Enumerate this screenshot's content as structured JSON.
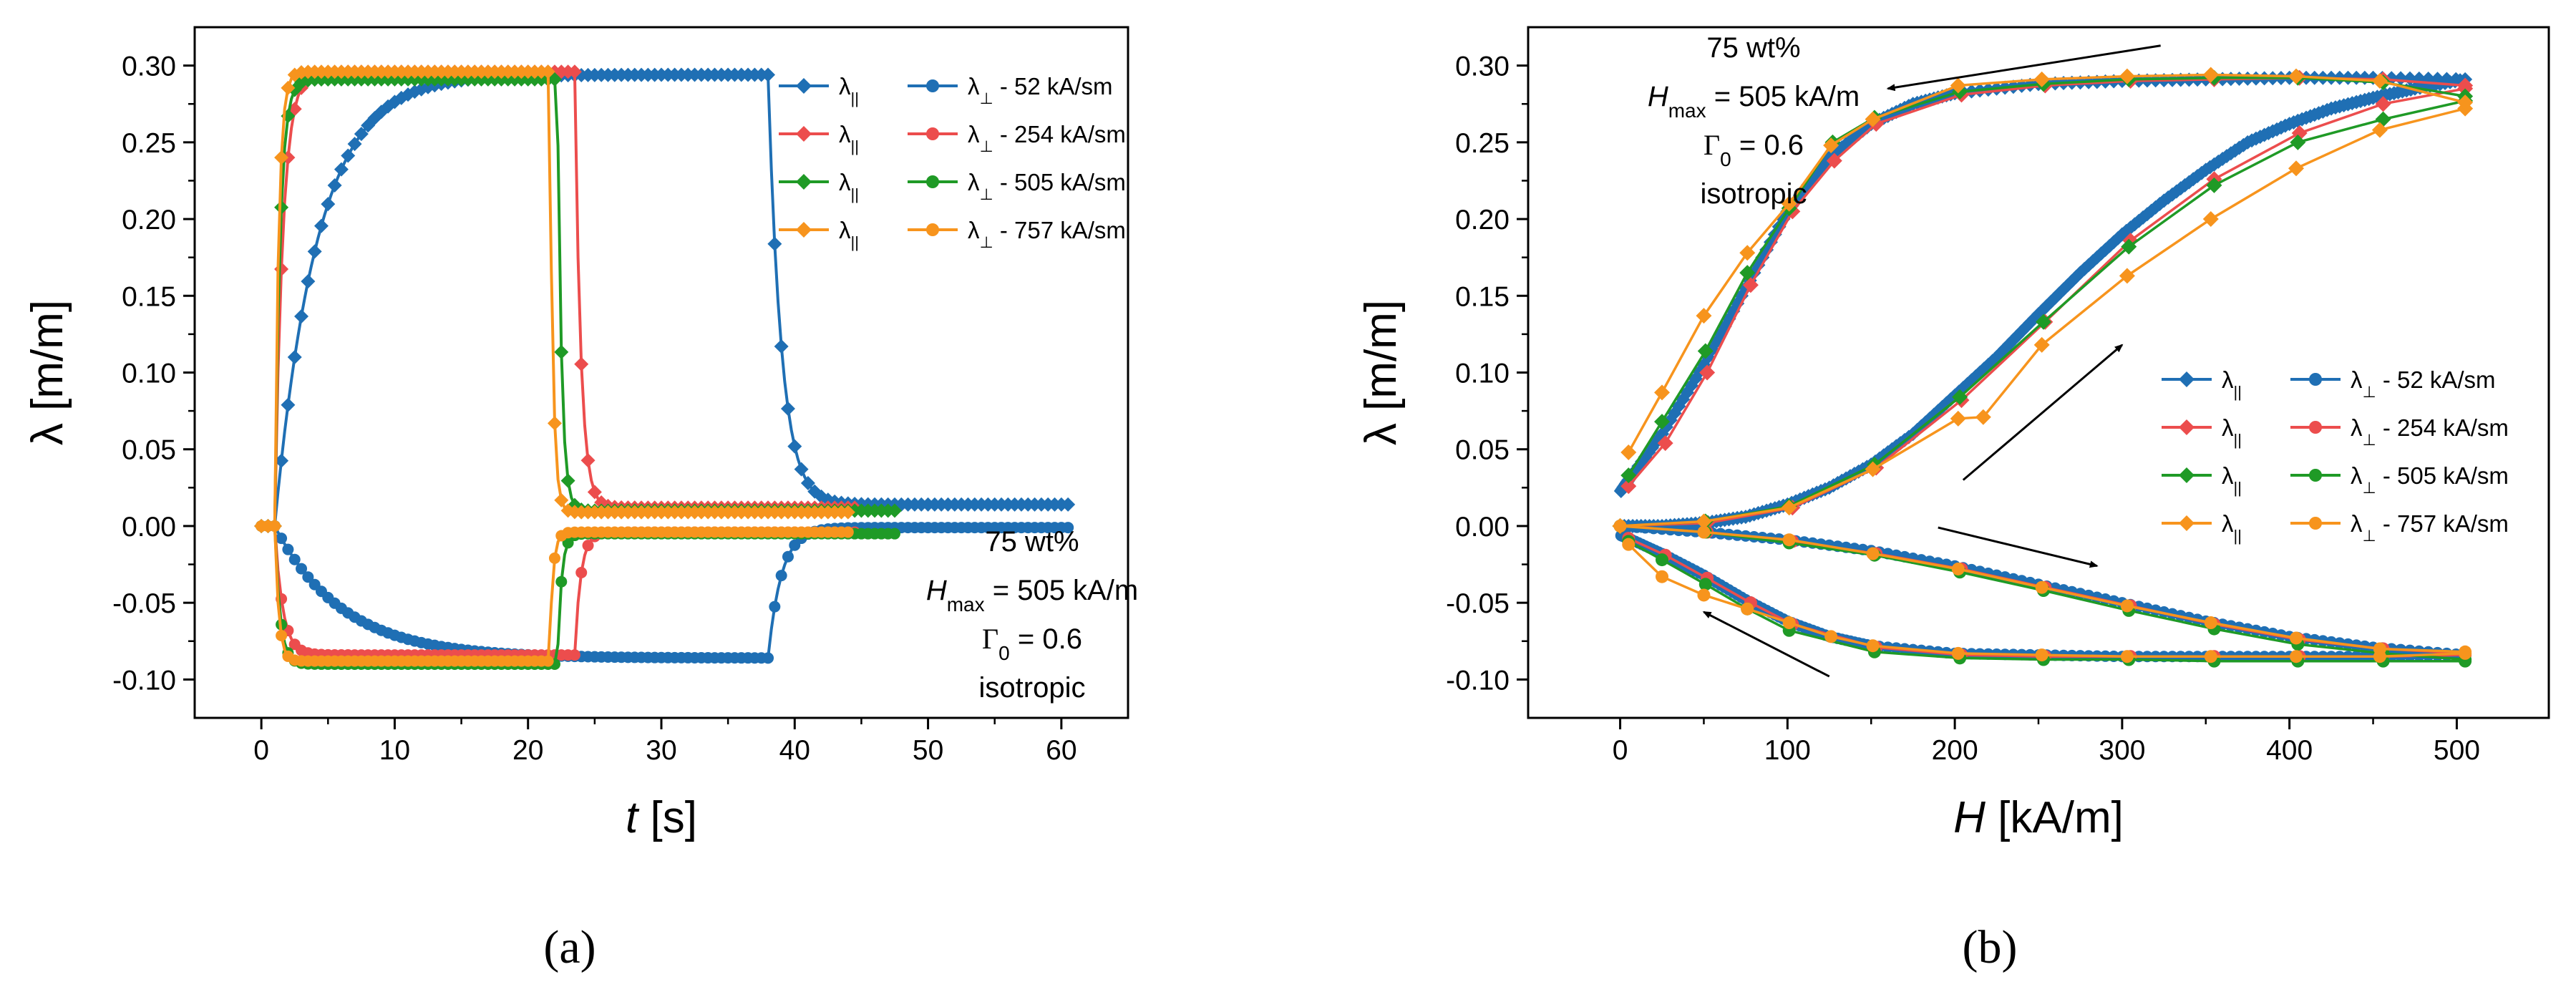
{
  "panel_labels": [
    "(a)",
    "(b)"
  ],
  "colors": {
    "52": "#1f6fb4",
    "254": "#ec4d4d",
    "505": "#1f9a26",
    "757": "#f7941d"
  },
  "legend": {
    "par_symbol": "λ",
    "par_sub": "||",
    "perp_symbol": "λ",
    "perp_sub": "⊥",
    "entries": [
      " -  52 kA/sm",
      " - 254 kA/sm",
      " - 505 kA/sm",
      " - 757 kA/sm"
    ]
  },
  "annotation": {
    "line1": "75 wt%",
    "hmax_sym": "H",
    "hmax_sub": "max",
    "hmax_val": " = 505 kA/m",
    "gamma": "Γ",
    "gamma_sub": "0",
    "gamma_val": " = 0.6",
    "line4": "isotropic"
  },
  "chart_data": [
    {
      "type": "line",
      "panel": "(a)",
      "xlabel_sym": "t",
      "xlabel_unit": " [s]",
      "ylabel": "λ [m/m]",
      "xlim": [
        -5,
        65
      ],
      "ylim": [
        -0.125,
        0.325
      ],
      "xticks": [
        0,
        10,
        20,
        30,
        40,
        50,
        60
      ],
      "yticks": [
        -0.1,
        -0.05,
        0.0,
        0.05,
        0.1,
        0.15,
        0.2,
        0.25,
        0.3
      ],
      "series": [
        {
          "name": "52 kA/sm",
          "field": "52",
          "t_on": 1.0,
          "t_off": 38.0,
          "tau_on": 3.2,
          "tau_off": 1.0,
          "par_max": 0.294,
          "perp_min": -0.086,
          "t_end": 60.5,
          "par_end": 0.014,
          "perp_end": -0.001
        },
        {
          "name": "254 kA/sm",
          "field": "254",
          "t_on": 1.0,
          "t_off": 23.5,
          "tau_on": 0.6,
          "tau_off": 0.45,
          "par_max": 0.296,
          "perp_min": -0.084,
          "t_end": 44.5,
          "par_end": 0.012,
          "perp_end": -0.004
        },
        {
          "name": "505 kA/sm",
          "field": "505",
          "t_on": 1.0,
          "t_off": 22.2,
          "tau_on": 0.4,
          "tau_off": 0.3,
          "par_max": 0.291,
          "perp_min": -0.09,
          "t_end": 47.5,
          "par_end": 0.01,
          "perp_end": -0.005
        },
        {
          "name": "757 kA/sm",
          "field": "757",
          "t_on": 1.0,
          "t_off": 21.6,
          "tau_on": 0.3,
          "tau_off": 0.25,
          "par_max": 0.296,
          "perp_min": -0.088,
          "t_end": 44.0,
          "par_end": 0.009,
          "perp_end": -0.004
        }
      ]
    },
    {
      "type": "line",
      "panel": "(b)",
      "xlabel_sym": "H",
      "xlabel_unit": " [kA/m]",
      "ylabel": "λ [m/m]",
      "xlim": [
        -55,
        555
      ],
      "ylim": [
        -0.125,
        0.325
      ],
      "xticks": [
        0,
        100,
        200,
        300,
        400,
        500
      ],
      "yticks": [
        -0.1,
        -0.05,
        0.0,
        0.05,
        0.1,
        0.15,
        0.2,
        0.25,
        0.3
      ],
      "series": [
        {
          "name": "52 kA/sm",
          "field": "52",
          "par_up": [
            [
              0,
              0
            ],
            [
              25,
              0.0
            ],
            [
              50,
              0.002
            ],
            [
              75,
              0.006
            ],
            [
              100,
              0.014
            ],
            [
              125,
              0.025
            ],
            [
              150,
              0.04
            ],
            [
              175,
              0.06
            ],
            [
              200,
              0.085
            ],
            [
              225,
              0.11
            ],
            [
              250,
              0.138
            ],
            [
              275,
              0.165
            ],
            [
              300,
              0.19
            ],
            [
              325,
              0.212
            ],
            [
              350,
              0.232
            ],
            [
              375,
              0.25
            ],
            [
              400,
              0.262
            ],
            [
              425,
              0.272
            ],
            [
              450,
              0.279
            ],
            [
              475,
              0.285
            ],
            [
              505,
              0.291
            ]
          ],
          "par_down": [
            [
              505,
              0.291
            ],
            [
              450,
              0.292
            ],
            [
              400,
              0.292
            ],
            [
              350,
              0.291
            ],
            [
              300,
              0.29
            ],
            [
              250,
              0.288
            ],
            [
              200,
              0.282
            ],
            [
              175,
              0.275
            ],
            [
              150,
              0.262
            ],
            [
              125,
              0.24
            ],
            [
              100,
              0.205
            ],
            [
              75,
              0.155
            ],
            [
              50,
              0.105
            ],
            [
              25,
              0.06
            ],
            [
              5,
              0.03
            ],
            [
              0,
              0.022
            ]
          ],
          "perp_up": [
            [
              0,
              0
            ],
            [
              50,
              -0.004
            ],
            [
              100,
              -0.009
            ],
            [
              150,
              -0.016
            ],
            [
              200,
              -0.026
            ],
            [
              250,
              -0.038
            ],
            [
              300,
              -0.05
            ],
            [
              350,
              -0.062
            ],
            [
              400,
              -0.072
            ],
            [
              450,
              -0.079
            ],
            [
              505,
              -0.084
            ]
          ],
          "perp_down": [
            [
              505,
              -0.084
            ],
            [
              450,
              -0.085
            ],
            [
              400,
              -0.085
            ],
            [
              350,
              -0.085
            ],
            [
              300,
              -0.085
            ],
            [
              250,
              -0.084
            ],
            [
              200,
              -0.083
            ],
            [
              150,
              -0.078
            ],
            [
              125,
              -0.072
            ],
            [
              100,
              -0.062
            ],
            [
              75,
              -0.048
            ],
            [
              50,
              -0.032
            ],
            [
              25,
              -0.018
            ],
            [
              5,
              -0.008
            ],
            [
              0,
              -0.006
            ]
          ]
        },
        {
          "name": "254 kA/sm",
          "field": "254",
          "par_up": [
            [
              0,
              0
            ],
            [
              52,
              0.002
            ],
            [
              103,
              0.012
            ],
            [
              153,
              0.038
            ],
            [
              204,
              0.082
            ],
            [
              254,
              0.133
            ],
            [
              305,
              0.186
            ],
            [
              355,
              0.226
            ],
            [
              406,
              0.256
            ],
            [
              456,
              0.275
            ],
            [
              505,
              0.285
            ]
          ],
          "par_down": [
            [
              505,
              0.287
            ],
            [
              456,
              0.291
            ],
            [
              406,
              0.292
            ],
            [
              355,
              0.291
            ],
            [
              305,
              0.29
            ],
            [
              254,
              0.287
            ],
            [
              204,
              0.281
            ],
            [
              153,
              0.262
            ],
            [
              128,
              0.238
            ],
            [
              103,
              0.205
            ],
            [
              78,
              0.157
            ],
            [
              52,
              0.1
            ],
            [
              27,
              0.054
            ],
            [
              5,
              0.026
            ]
          ],
          "perp_up": [
            [
              0,
              0
            ],
            [
              52,
              -0.004
            ],
            [
              103,
              -0.01
            ],
            [
              153,
              -0.018
            ],
            [
              204,
              -0.028
            ],
            [
              254,
              -0.04
            ],
            [
              305,
              -0.052
            ],
            [
              355,
              -0.064
            ],
            [
              406,
              -0.074
            ],
            [
              456,
              -0.08
            ],
            [
              505,
              -0.083
            ]
          ],
          "perp_down": [
            [
              505,
              -0.084
            ],
            [
              456,
              -0.085
            ],
            [
              406,
              -0.085
            ],
            [
              355,
              -0.085
            ],
            [
              305,
              -0.085
            ],
            [
              254,
              -0.085
            ],
            [
              204,
              -0.084
            ],
            [
              153,
              -0.079
            ],
            [
              103,
              -0.064
            ],
            [
              78,
              -0.05
            ],
            [
              52,
              -0.034
            ],
            [
              27,
              -0.019
            ],
            [
              5,
              -0.008
            ]
          ]
        },
        {
          "name": "505 kA/sm",
          "field": "505",
          "par_up": [
            [
              0,
              0
            ],
            [
              51,
              0.003
            ],
            [
              101,
              0.013
            ],
            [
              152,
              0.04
            ],
            [
              203,
              0.084
            ],
            [
              253,
              0.133
            ],
            [
              304,
              0.182
            ],
            [
              355,
              0.222
            ],
            [
              405,
              0.25
            ],
            [
              456,
              0.265
            ],
            [
              505,
              0.277
            ]
          ],
          "par_down": [
            [
              505,
              0.28
            ],
            [
              456,
              0.289
            ],
            [
              405,
              0.292
            ],
            [
              355,
              0.292
            ],
            [
              304,
              0.291
            ],
            [
              253,
              0.288
            ],
            [
              203,
              0.283
            ],
            [
              152,
              0.266
            ],
            [
              127,
              0.25
            ],
            [
              101,
              0.207
            ],
            [
              76,
              0.165
            ],
            [
              51,
              0.114
            ],
            [
              25,
              0.068
            ],
            [
              5,
              0.033
            ]
          ],
          "perp_up": [
            [
              0,
              0
            ],
            [
              51,
              -0.004
            ],
            [
              101,
              -0.011
            ],
            [
              152,
              -0.019
            ],
            [
              203,
              -0.03
            ],
            [
              253,
              -0.042
            ],
            [
              304,
              -0.055
            ],
            [
              355,
              -0.067
            ],
            [
              405,
              -0.077
            ],
            [
              456,
              -0.083
            ],
            [
              505,
              -0.087
            ]
          ],
          "perp_down": [
            [
              505,
              -0.088
            ],
            [
              456,
              -0.088
            ],
            [
              405,
              -0.088
            ],
            [
              355,
              -0.088
            ],
            [
              304,
              -0.087
            ],
            [
              253,
              -0.087
            ],
            [
              203,
              -0.086
            ],
            [
              152,
              -0.082
            ],
            [
              101,
              -0.068
            ],
            [
              76,
              -0.054
            ],
            [
              51,
              -0.038
            ],
            [
              25,
              -0.022
            ],
            [
              5,
              -0.01
            ]
          ]
        },
        {
          "name": "757 kA/sm",
          "field": "757",
          "par_up": [
            [
              0,
              0
            ],
            [
              50,
              0.003
            ],
            [
              101,
              0.012
            ],
            [
              151,
              0.037
            ],
            [
              202,
              0.07
            ],
            [
              217,
              0.071
            ],
            [
              252,
              0.118
            ],
            [
              303,
              0.163
            ],
            [
              353,
              0.2
            ],
            [
              404,
              0.233
            ],
            [
              454,
              0.258
            ],
            [
              505,
              0.272
            ]
          ],
          "par_down": [
            [
              505,
              0.276
            ],
            [
              454,
              0.29
            ],
            [
              404,
              0.293
            ],
            [
              353,
              0.294
            ],
            [
              303,
              0.293
            ],
            [
              252,
              0.291
            ],
            [
              202,
              0.287
            ],
            [
              151,
              0.265
            ],
            [
              126,
              0.248
            ],
            [
              101,
              0.21
            ],
            [
              76,
              0.178
            ],
            [
              50,
              0.137
            ],
            [
              25,
              0.087
            ],
            [
              5,
              0.048
            ]
          ],
          "perp_up": [
            [
              0,
              0
            ],
            [
              50,
              -0.004
            ],
            [
              101,
              -0.009
            ],
            [
              151,
              -0.018
            ],
            [
              202,
              -0.028
            ],
            [
              252,
              -0.04
            ],
            [
              303,
              -0.052
            ],
            [
              353,
              -0.063
            ],
            [
              404,
              -0.073
            ],
            [
              454,
              -0.08
            ],
            [
              505,
              -0.082
            ]
          ],
          "perp_down": [
            [
              505,
              -0.083
            ],
            [
              454,
              -0.085
            ],
            [
              404,
              -0.085
            ],
            [
              353,
              -0.085
            ],
            [
              303,
              -0.085
            ],
            [
              252,
              -0.084
            ],
            [
              202,
              -0.083
            ],
            [
              151,
              -0.078
            ],
            [
              126,
              -0.072
            ],
            [
              101,
              -0.063
            ],
            [
              76,
              -0.054
            ],
            [
              50,
              -0.045
            ],
            [
              25,
              -0.033
            ],
            [
              5,
              -0.012
            ]
          ]
        }
      ],
      "arrows": [
        {
          "from": [
            323,
            0.313
          ],
          "to": [
            160,
            0.285
          ]
        },
        {
          "from": [
            205,
            0.03
          ],
          "to": [
            300,
            0.118
          ]
        },
        {
          "from": [
            190,
            -0.001
          ],
          "to": [
            285,
            -0.026
          ]
        },
        {
          "from": [
            125,
            -0.098
          ],
          "to": [
            50,
            -0.056
          ]
        }
      ]
    }
  ]
}
